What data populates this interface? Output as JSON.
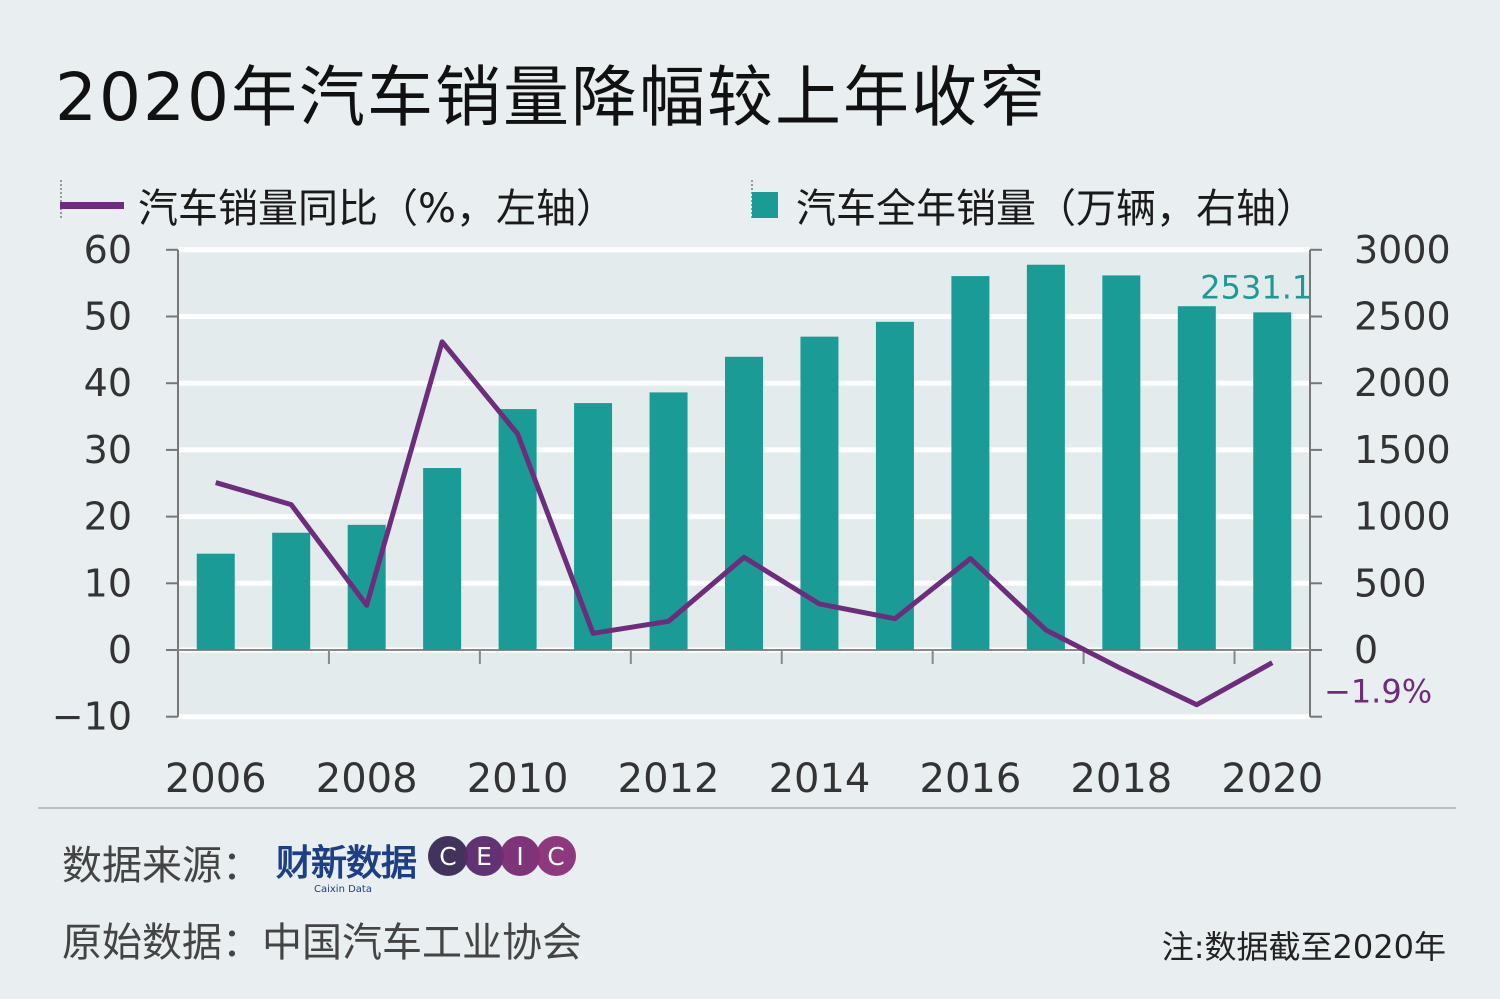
{
  "title": "2020年汽车销量降幅较上年收窄",
  "legend": {
    "line_label": "汽车销量同比（%，左轴）",
    "bar_label": "汽车全年销量（万辆，右轴）"
  },
  "colors": {
    "bar": "#1a9b95",
    "line": "#6e2d7c",
    "background": "#e9eef0"
  },
  "chart_data": {
    "type": "bar",
    "x": [
      2006,
      2007,
      2008,
      2009,
      2010,
      2011,
      2012,
      2013,
      2014,
      2015,
      2016,
      2017,
      2018,
      2019,
      2020
    ],
    "x_tick_labels": [
      "2006",
      "2008",
      "2010",
      "2012",
      "2014",
      "2016",
      "2018",
      "2020"
    ],
    "series": [
      {
        "name": "汽车全年销量（万辆，右轴）",
        "type": "bar",
        "axis": "right",
        "values": [
          722,
          879,
          938,
          1364,
          1806,
          1851,
          1931,
          2198,
          2349,
          2460,
          2803,
          2888,
          2808,
          2577,
          2531.1
        ]
      },
      {
        "name": "汽车销量同比（%，左轴）",
        "type": "line",
        "axis": "left",
        "values": [
          25.1,
          21.8,
          6.7,
          46.2,
          32.4,
          2.5,
          4.3,
          13.9,
          6.9,
          4.7,
          13.7,
          3.0,
          -2.8,
          -8.2,
          -1.9
        ]
      }
    ],
    "left_axis": {
      "ylim": [
        -10,
        60
      ],
      "ticks": [
        "−10",
        "0",
        "10",
        "20",
        "30",
        "40",
        "50",
        "60"
      ]
    },
    "right_axis": {
      "ylim": [
        -500,
        3000
      ],
      "ticks": [
        "0",
        "500",
        "1000",
        "1500",
        "2000",
        "2500",
        "3000"
      ]
    },
    "annotations": {
      "last_bar": "2531.1",
      "last_line": "−1.9%"
    },
    "grid": true
  },
  "footer": {
    "source_label": "数据来源：",
    "logo_cn": "财新数据",
    "logo_en": "Caixin Data",
    "ceic": [
      "C",
      "E",
      "I",
      "C"
    ],
    "ceic_colors": [
      "#3a2a55",
      "#5a2a6e",
      "#7a2a72",
      "#8a2f78"
    ],
    "original_label": "原始数据：中国汽车工业协会",
    "note": "注:数据截至2020年"
  }
}
